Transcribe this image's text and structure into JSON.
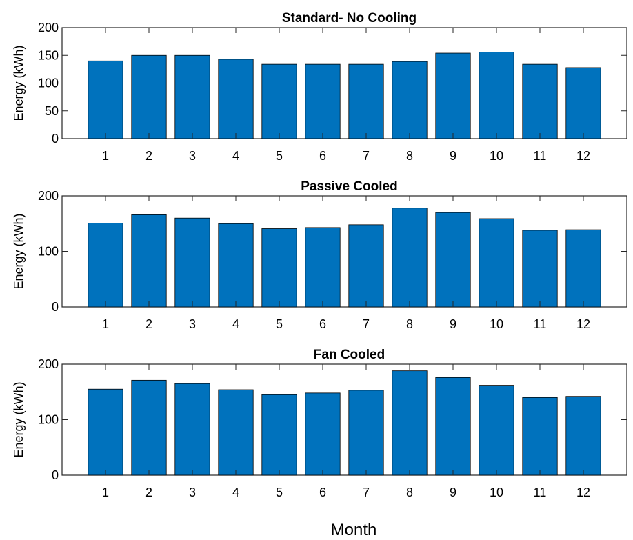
{
  "figure": {
    "xlabel": "Month",
    "bar_color": "#0072BD"
  },
  "chart_data": [
    {
      "type": "bar",
      "title": "Standard-  No Cooling",
      "ylabel": "Energy (kWh)",
      "xlabel": "",
      "categories": [
        "1",
        "2",
        "3",
        "4",
        "5",
        "6",
        "7",
        "8",
        "9",
        "10",
        "11",
        "12"
      ],
      "values": [
        140,
        150,
        150,
        143,
        134,
        134,
        134,
        139,
        154,
        156,
        134,
        128
      ],
      "ylim": [
        0,
        200
      ],
      "yticks": [
        0,
        50,
        100,
        150,
        200
      ],
      "grid": false
    },
    {
      "type": "bar",
      "title": "Passive Cooled",
      "ylabel": "Energy (kWh)",
      "xlabel": "",
      "categories": [
        "1",
        "2",
        "3",
        "4",
        "5",
        "6",
        "7",
        "8",
        "9",
        "10",
        "11",
        "12"
      ],
      "values": [
        151,
        166,
        160,
        150,
        141,
        143,
        148,
        178,
        170,
        159,
        138,
        139
      ],
      "ylim": [
        0,
        200
      ],
      "yticks": [
        0,
        100,
        200
      ],
      "grid": false
    },
    {
      "type": "bar",
      "title": "Fan Cooled",
      "ylabel": "Energy (kWh)",
      "xlabel": "Month",
      "categories": [
        "1",
        "2",
        "3",
        "4",
        "5",
        "6",
        "7",
        "8",
        "9",
        "10",
        "11",
        "12"
      ],
      "values": [
        155,
        171,
        165,
        154,
        145,
        148,
        153,
        188,
        176,
        162,
        140,
        142
      ],
      "ylim": [
        0,
        200
      ],
      "yticks": [
        0,
        100,
        200
      ],
      "grid": false
    }
  ]
}
